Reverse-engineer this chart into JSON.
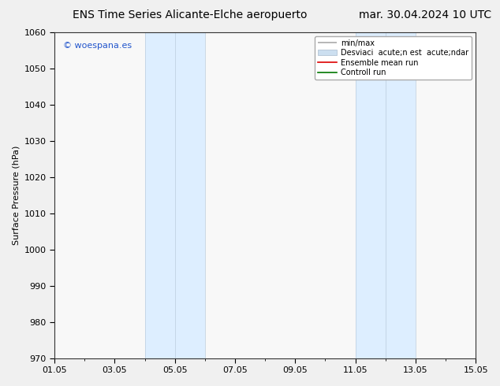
{
  "title_left": "ENS Time Series Alicante-Elche aeropuerto",
  "title_right": "mar. 30.04.2024 10 UTC",
  "ylabel": "Surface Pressure (hPa)",
  "ylim": [
    970,
    1060
  ],
  "yticks": [
    970,
    980,
    990,
    1000,
    1010,
    1020,
    1030,
    1040,
    1050,
    1060
  ],
  "xtick_labels": [
    "01.05",
    "03.05",
    "05.05",
    "07.05",
    "09.05",
    "11.05",
    "13.05",
    "15.05"
  ],
  "xtick_positions": [
    1,
    3,
    5,
    7,
    9,
    11,
    13,
    15
  ],
  "shaded_regions": [
    {
      "xmin": 4.0,
      "xmax": 5.0,
      "color": "#ddeeff"
    },
    {
      "xmin": 5.0,
      "xmax": 6.0,
      "color": "#ddeeff"
    },
    {
      "xmin": 11.0,
      "xmax": 12.0,
      "color": "#ddeeff"
    },
    {
      "xmin": 12.0,
      "xmax": 13.0,
      "color": "#ddeeff"
    }
  ],
  "shaded_borders": [
    {
      "x": 4.0
    },
    {
      "x": 5.0
    },
    {
      "x": 6.0
    },
    {
      "x": 11.0
    },
    {
      "x": 12.0
    },
    {
      "x": 13.0
    }
  ],
  "xmin": 1,
  "xmax": 15,
  "watermark": "© woespana.es",
  "watermark_color": "#2255cc",
  "legend_label_minmax": "min/max",
  "legend_label_desv": "Desviaci  acute;n est  acute;ndar",
  "legend_label_ensemble": "Ensemble mean run",
  "legend_label_control": "Controll run",
  "legend_color_minmax": "#aaaaaa",
  "legend_color_desv": "#ccdff0",
  "legend_color_ensemble": "#dd0000",
  "legend_color_control": "#007700",
  "bg_color": "#f0f0f0",
  "plot_bg_color": "#f8f8f8",
  "title_fontsize": 10,
  "label_fontsize": 8,
  "tick_fontsize": 8,
  "grid_color": "#dddddd"
}
